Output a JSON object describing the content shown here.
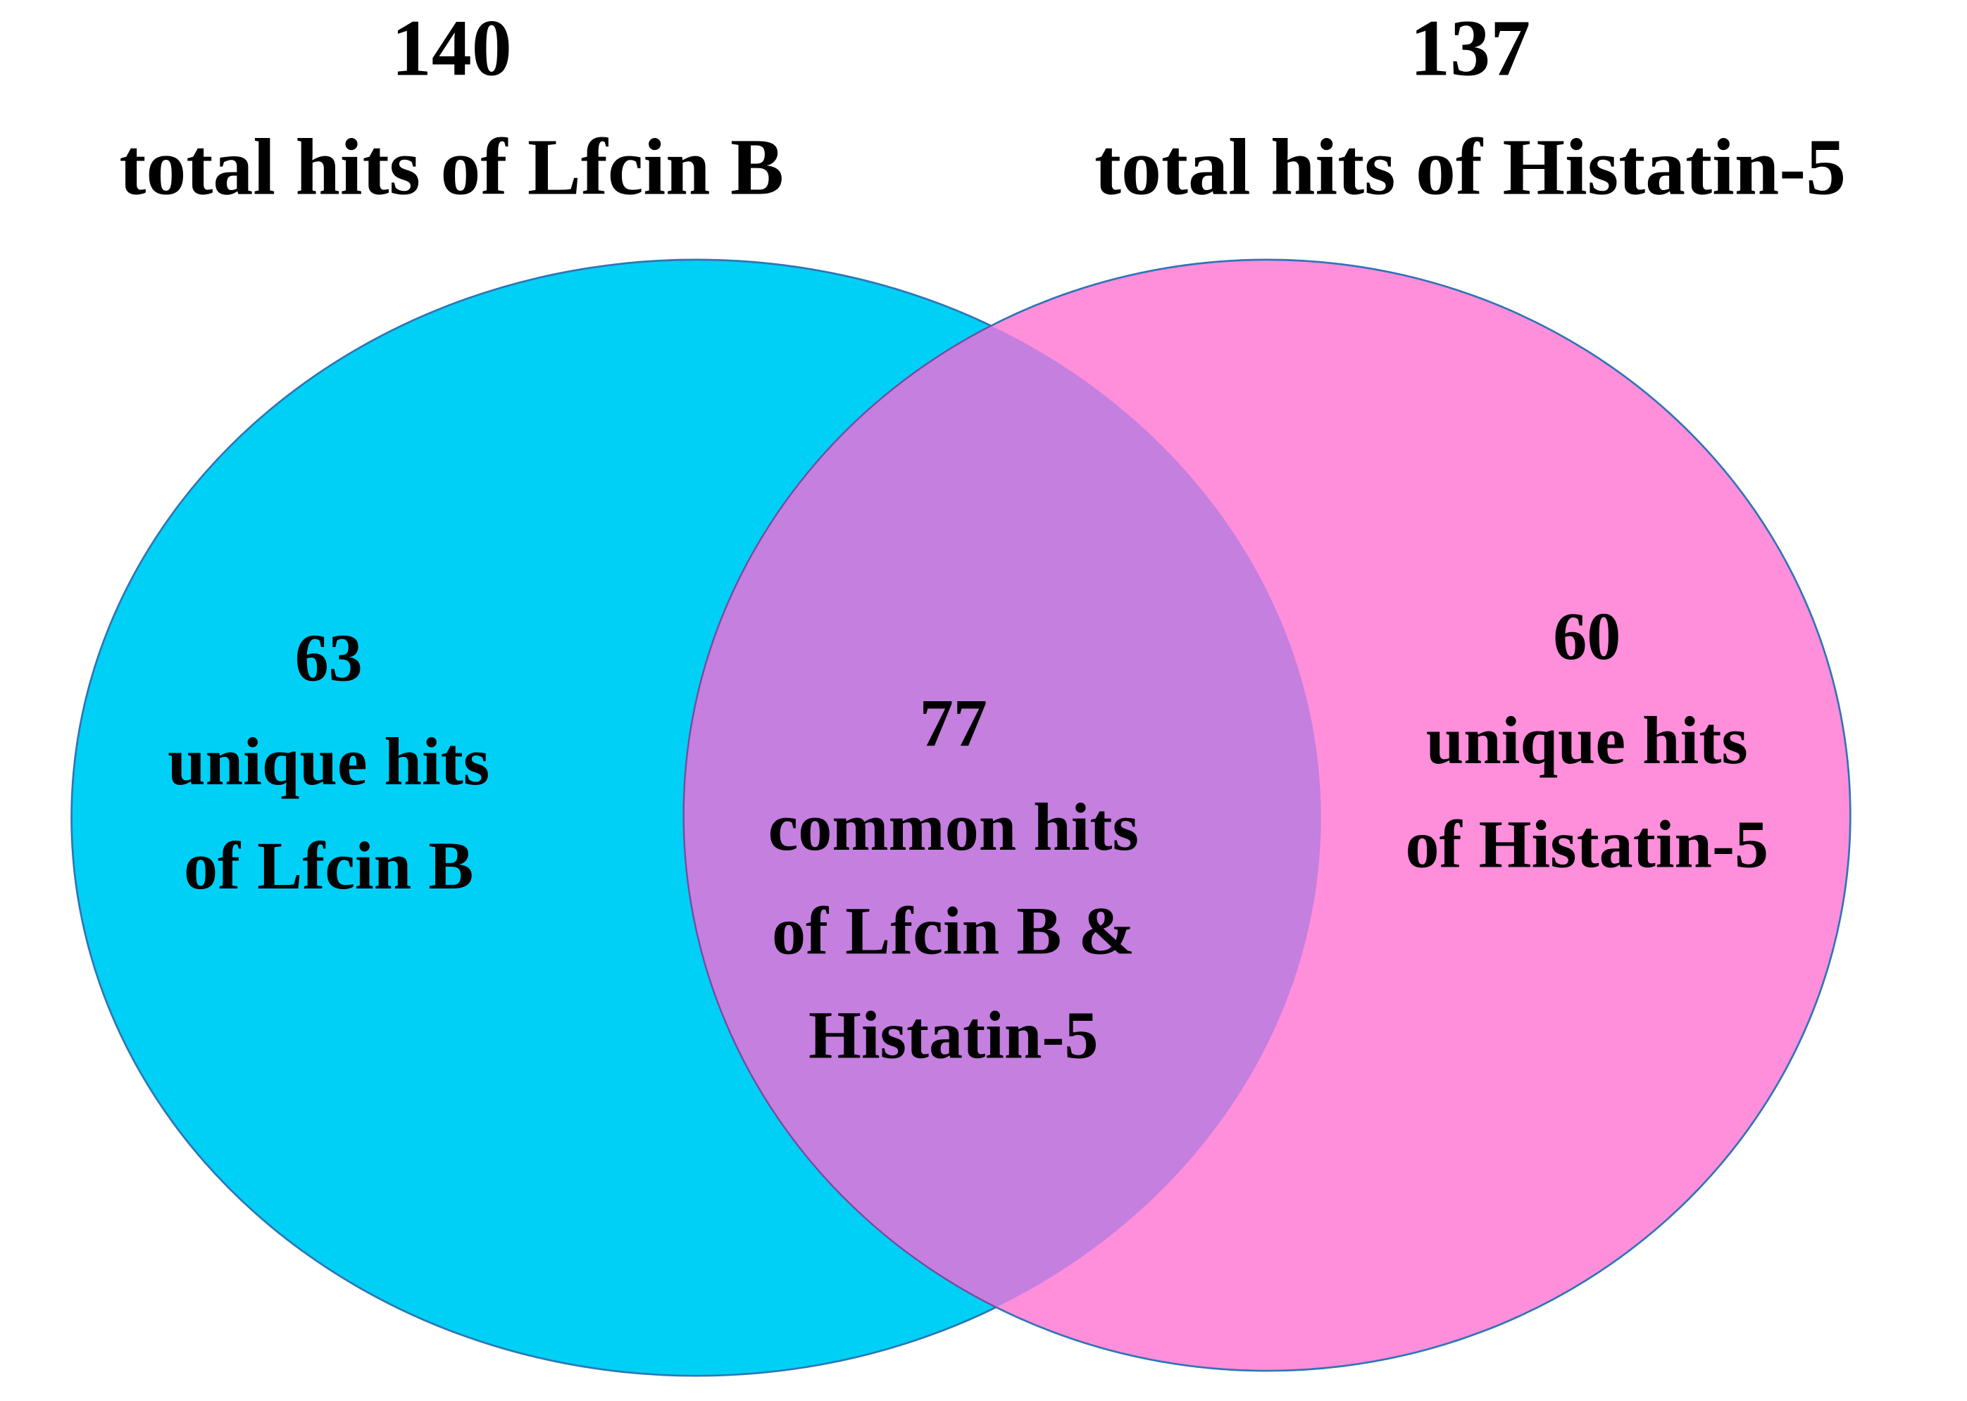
{
  "sets": [
    {
      "total": 140,
      "title": "total hits of Lfcin B",
      "unique": 63,
      "unique_lines": [
        "unique hits",
        "of Lfcin B"
      ],
      "color": "#00d0f5"
    },
    {
      "total": 137,
      "title": "total hits of Histatin-5",
      "unique": 60,
      "unique_lines": [
        "unique hits",
        "of Histatin-5"
      ],
      "color": "#ff8edb"
    }
  ],
  "intersection": {
    "count": 77,
    "lines": [
      "common hits",
      "of Lfcin B &",
      "Histatin-5"
    ],
    "color": "#c47fdf"
  }
}
